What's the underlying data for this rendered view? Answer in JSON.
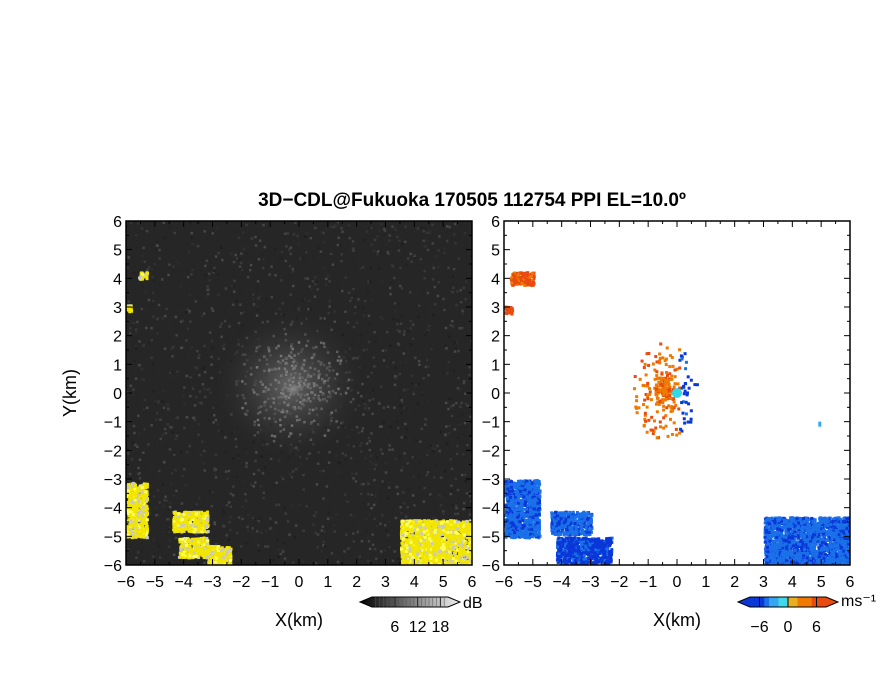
{
  "title": "3D−CDL@Fukuoka 170505 112754 PPI EL=10.0º",
  "chart_data": [
    {
      "type": "heatmap",
      "panel": "left",
      "quantity": "reflectivity",
      "xlabel": "X(km)",
      "ylabel": "Y(km)",
      "xlim": [
        -6,
        6
      ],
      "ylim": [
        -6,
        6
      ],
      "x_ticks": [
        "−6",
        "−5",
        "−4",
        "−3",
        "−2",
        "−1",
        "0",
        "1",
        "2",
        "3",
        "4",
        "5",
        "6"
      ],
      "y_ticks": [
        "−6",
        "−5",
        "−4",
        "−3",
        "−2",
        "−1",
        "0",
        "1",
        "2",
        "3",
        "4",
        "5",
        "6"
      ],
      "colorbar": {
        "unit": "dB",
        "ticks": [
          "6",
          "12",
          "18"
        ],
        "tick_values": [
          6,
          12,
          18
        ],
        "range": [
          0,
          20
        ]
      },
      "background_level_db": 4,
      "echo_regions": [
        {
          "x": [
            -5.6,
            -5.3
          ],
          "y": [
            4.0,
            4.25
          ],
          "level": "high"
        },
        {
          "x": [
            -6.0,
            -5.85
          ],
          "y": [
            2.85,
            3.1
          ],
          "level": "high"
        },
        {
          "x": [
            -6.0,
            -5.3
          ],
          "y": [
            -5.0,
            -3.1
          ],
          "level": "high"
        },
        {
          "x": [
            -4.4,
            -3.2
          ],
          "y": [
            -4.8,
            -4.1
          ],
          "level": "high"
        },
        {
          "x": [
            -4.2,
            -3.2
          ],
          "y": [
            -5.7,
            -5.0
          ],
          "level": "high"
        },
        {
          "x": [
            -3.2,
            -2.4
          ],
          "y": [
            -6.0,
            -5.3
          ],
          "level": "high"
        },
        {
          "x": [
            3.5,
            6.0
          ],
          "y": [
            -6.0,
            -4.4
          ],
          "level": "high"
        }
      ]
    },
    {
      "type": "heatmap",
      "panel": "right",
      "quantity": "radial velocity",
      "xlabel": "X(km)",
      "xlim": [
        -6,
        6
      ],
      "ylim": [
        -6,
        6
      ],
      "x_ticks": [
        "−6",
        "−5",
        "−4",
        "−3",
        "−2",
        "−1",
        "0",
        "1",
        "2",
        "3",
        "4",
        "5",
        "6"
      ],
      "y_ticks": [
        "−6",
        "−5",
        "−4",
        "−3",
        "−2",
        "−1",
        "0",
        "1",
        "2",
        "3",
        "4",
        "5",
        "6"
      ],
      "colorbar": {
        "unit": "ms⁻¹",
        "ticks": [
          "−6",
          "0",
          "6"
        ],
        "tick_values": [
          -6,
          0,
          6
        ],
        "range": [
          -8,
          8
        ]
      },
      "echo_regions": [
        {
          "x": [
            -5.8,
            -5.0
          ],
          "y": [
            3.8,
            4.25
          ],
          "velocity": 5
        },
        {
          "x": [
            -6.0,
            -5.75
          ],
          "y": [
            2.8,
            3.05
          ],
          "velocity": 6
        },
        {
          "x": [
            -6.0,
            -4.8
          ],
          "y": [
            -5.0,
            -3.0
          ],
          "velocity": -5
        },
        {
          "x": [
            -4.4,
            -3.0
          ],
          "y": [
            -4.9,
            -4.1
          ],
          "velocity": -5
        },
        {
          "x": [
            -4.2,
            -2.3
          ],
          "y": [
            -5.9,
            -5.0
          ],
          "velocity": -6
        },
        {
          "x": [
            3.0,
            6.0
          ],
          "y": [
            -6.0,
            -4.3
          ],
          "velocity": -5
        }
      ],
      "center_cluster": {
        "x": [
          -1.6,
          1.1
        ],
        "y": [
          -1.7,
          2.3
        ],
        "velocity_main": 4,
        "velocity_east": -6
      },
      "isolated_points": [
        {
          "x": 4.9,
          "y": -1.0,
          "velocity": -3
        }
      ]
    }
  ]
}
